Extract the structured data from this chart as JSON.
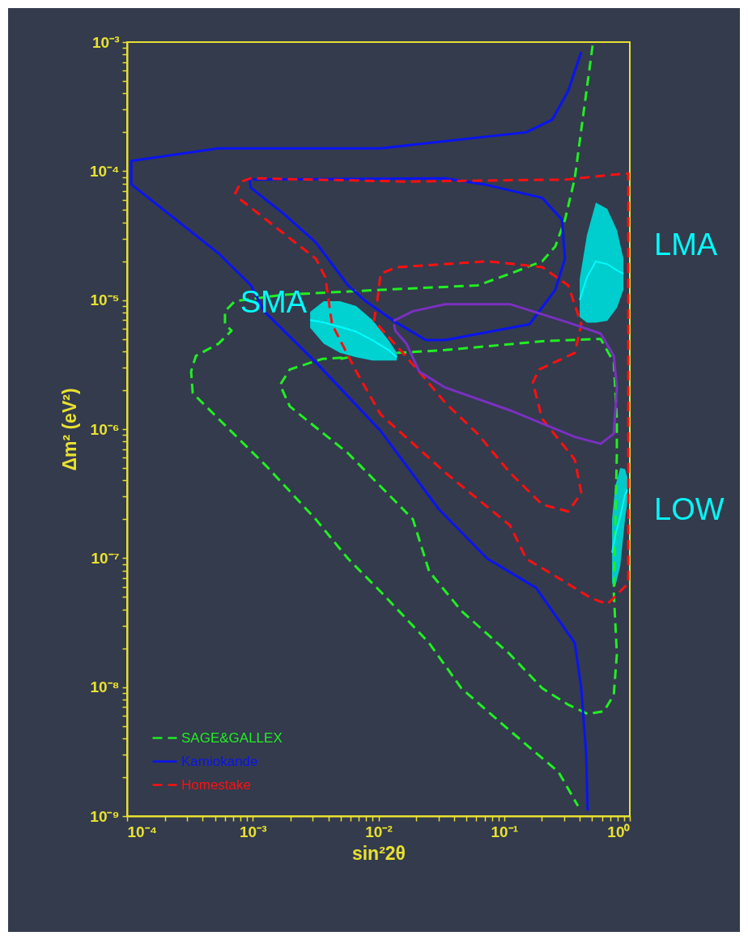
{
  "chart_data": {
    "type": "line",
    "xlabel": "sin²2θ",
    "ylabel": "Δm² (eV²)",
    "log": "xy",
    "legend": "bottom left",
    "xlim": [
      0.0001,
      1
    ],
    "ylim": [
      1e-09,
      0.001
    ],
    "xticks": [
      {
        "value": 0.0001,
        "label": "10⁻⁴"
      },
      {
        "value": 0.0002,
        "label": null
      },
      {
        "value": 0.0003,
        "label": null
      },
      {
        "value": 0.0004,
        "label": null
      },
      {
        "value": 0.0005,
        "label": null
      },
      {
        "value": 0.0006,
        "label": null
      },
      {
        "value": 0.0007,
        "label": null
      },
      {
        "value": 0.0008,
        "label": null
      },
      {
        "value": 0.0009,
        "label": null
      },
      {
        "value": 0.001,
        "label": "10⁻³"
      },
      {
        "value": 0.002,
        "label": null
      },
      {
        "value": 0.003,
        "label": null
      },
      {
        "value": 0.004,
        "label": null
      },
      {
        "value": 0.005,
        "label": null
      },
      {
        "value": 0.006,
        "label": null
      },
      {
        "value": 0.007,
        "label": null
      },
      {
        "value": 0.008,
        "label": null
      },
      {
        "value": 0.009,
        "label": null
      },
      {
        "value": 0.01,
        "label": "10⁻²"
      },
      {
        "value": 0.02,
        "label": null
      },
      {
        "value": 0.03,
        "label": null
      },
      {
        "value": 0.04,
        "label": null
      },
      {
        "value": 0.05,
        "label": null
      },
      {
        "value": 0.06,
        "label": null
      },
      {
        "value": 0.07,
        "label": null
      },
      {
        "value": 0.08,
        "label": null
      },
      {
        "value": 0.09,
        "label": null
      },
      {
        "value": 0.1,
        "label": "10⁻¹"
      },
      {
        "value": 0.2,
        "label": null
      },
      {
        "value": 0.3,
        "label": null
      },
      {
        "value": 0.4,
        "label": null
      },
      {
        "value": 0.5,
        "label": null
      },
      {
        "value": 0.6,
        "label": null
      },
      {
        "value": 0.7,
        "label": null
      },
      {
        "value": 0.8,
        "label": null
      },
      {
        "value": 0.9,
        "label": null
      },
      {
        "value": 1,
        "label": "10⁰"
      }
    ],
    "yticks": [
      {
        "value": 1e-09,
        "label": "10⁻⁹"
      },
      {
        "value": 2e-09,
        "label": null
      },
      {
        "value": 3e-09,
        "label": null
      },
      {
        "value": 4e-09,
        "label": null
      },
      {
        "value": 5e-09,
        "label": null
      },
      {
        "value": 6e-09,
        "label": null
      },
      {
        "value": 7e-09,
        "label": null
      },
      {
        "value": 8e-09,
        "label": null
      },
      {
        "value": 9e-09,
        "label": null
      },
      {
        "value": 1e-08,
        "label": "10⁻⁸"
      },
      {
        "value": 2e-08,
        "label": null
      },
      {
        "value": 3e-08,
        "label": null
      },
      {
        "value": 4e-08,
        "label": null
      },
      {
        "value": 5e-08,
        "label": null
      },
      {
        "value": 6e-08,
        "label": null
      },
      {
        "value": 7e-08,
        "label": null
      },
      {
        "value": 8e-08,
        "label": null
      },
      {
        "value": 9e-08,
        "label": null
      },
      {
        "value": 1e-07,
        "label": "10⁻⁷"
      },
      {
        "value": 2e-07,
        "label": null
      },
      {
        "value": 3e-07,
        "label": null
      },
      {
        "value": 4e-07,
        "label": null
      },
      {
        "value": 5e-07,
        "label": null
      },
      {
        "value": 6e-07,
        "label": null
      },
      {
        "value": 7e-07,
        "label": null
      },
      {
        "value": 8e-07,
        "label": null
      },
      {
        "value": 9e-07,
        "label": null
      },
      {
        "value": 1e-06,
        "label": "10⁻⁶"
      },
      {
        "value": 2e-06,
        "label": null
      },
      {
        "value": 3e-06,
        "label": null
      },
      {
        "value": 4e-06,
        "label": null
      },
      {
        "value": 5e-06,
        "label": null
      },
      {
        "value": 6e-06,
        "label": null
      },
      {
        "value": 7e-06,
        "label": null
      },
      {
        "value": 8e-06,
        "label": null
      },
      {
        "value": 9e-06,
        "label": null
      },
      {
        "value": 1e-05,
        "label": "10⁻⁵"
      },
      {
        "value": 2e-05,
        "label": null
      },
      {
        "value": 3e-05,
        "label": null
      },
      {
        "value": 4e-05,
        "label": null
      },
      {
        "value": 5e-05,
        "label": null
      },
      {
        "value": 6e-05,
        "label": null
      },
      {
        "value": 7e-05,
        "label": null
      },
      {
        "value": 8e-05,
        "label": null
      },
      {
        "value": 9e-05,
        "label": null
      },
      {
        "value": 0.0001,
        "label": "10⁻⁴"
      },
      {
        "value": 0.0002,
        "label": null
      },
      {
        "value": 0.0003,
        "label": null
      },
      {
        "value": 0.0004,
        "label": null
      },
      {
        "value": 0.0005,
        "label": null
      },
      {
        "value": 0.0006,
        "label": null
      },
      {
        "value": 0.0007,
        "label": null
      },
      {
        "value": 0.0008,
        "label": null
      },
      {
        "value": 0.0009,
        "label": null
      },
      {
        "value": 0.001,
        "label": "10⁻³"
      }
    ],
    "series": [
      {
        "name": "SAGE&GALLEX",
        "color": "#22ee22",
        "line_style": "dashed",
        "x": [
          0.506,
          0.411,
          0.365,
          0.305,
          0.255,
          0.201,
          0.111,
          0.0615,
          0.0104,
          0.00175,
          0.000719,
          0.000601,
          0.000601,
          0.000678,
          0.000535,
          0.000353,
          0.000323,
          0.000333,
          0.000535,
          0.0013,
          0.00317,
          0.00573,
          0.0104,
          0.0253,
          0.0457,
          0.111,
          0.271,
          0.387
        ],
        "values": [
          0.00094,
          0.00021,
          8.8e-05,
          4.2e-05,
          2.6e-05,
          2e-05,
          1.6e-05,
          1.3e-05,
          1.2e-05,
          1.1e-05,
          9.8e-06,
          8.2e-06,
          6.5e-06,
          5.8e-06,
          4.6e-06,
          3.7e-06,
          2.8e-06,
          1.9e-06,
          1.2e-06,
          5.1e-07,
          2e-07,
          9.9e-08,
          5.5e-08,
          2.2e-08,
          9.8e-09,
          4.6e-09,
          2.2e-09,
          1.2e-09
        ]
      },
      {
        "color": "#22ee22",
        "line_style": "dashed",
        "x": [
          0.014,
          0.034,
          0.201,
          0.586,
          0.745,
          0.789,
          0.789,
          0.745,
          0.789,
          0.745,
          0.622,
          0.462,
          0.324,
          0.201,
          0.111,
          0.0457,
          0.0253,
          0.0188,
          0.00573,
          0.00197,
          0.00165,
          0.00197,
          0.00357,
          0.00573,
          0.005
        ],
        "values": [
          3.9e-06,
          4.1e-06,
          4.8e-06,
          5e-06,
          3.3e-06,
          1.2e-06,
          6.5e-07,
          5.5e-08,
          1.8e-08,
          8.7e-09,
          6.5e-09,
          6.2e-09,
          7.3e-09,
          9.8e-09,
          1.8e-08,
          3.9e-08,
          7.9e-08,
          2e-07,
          6.5e-07,
          1.5e-06,
          2.2e-06,
          2.9e-06,
          3.5e-06,
          3.6e-06,
          3.5e-06
        ]
      },
      {
        "name": "Kamiokande",
        "color": "#0a14f0",
        "line_style": "solid",
        "x": [
          0.411,
          0.324,
          0.241,
          0.15,
          0.0104,
          0.000535,
          0.000108,
          0.000108,
          0.000535,
          0.000968,
          0.00123,
          0.00317,
          0.0104,
          0.0302,
          0.0735,
          0.179,
          0.365,
          0.411,
          0.449,
          0.462
        ],
        "values": [
          0.00084,
          0.00042,
          0.00025,
          0.0002,
          0.00015,
          0.00015,
          0.00012,
          7.9e-05,
          2.3e-05,
          1.3e-05,
          8.2e-06,
          3.3e-06,
          9.7e-07,
          2.4e-07,
          9.9e-08,
          5.9e-08,
          2.2e-08,
          9.8e-09,
          3.1e-09,
          1.1e-09
        ]
      },
      {
        "color": "#0a14f0",
        "line_style": "solid",
        "x": [
          0.001,
          0.034,
          0.0693,
          0.201,
          0.288,
          0.305,
          0.255,
          0.159,
          0.034,
          0.0238,
          0.0132,
          0.00771,
          0.00573,
          0.00317,
          0.00175,
          0.000968,
          0.00094
        ],
        "values": [
          8.6e-05,
          8.8e-05,
          7.9e-05,
          6.2e-05,
          4.2e-05,
          2.1e-05,
          1.2e-05,
          6.5e-06,
          4.9e-06,
          4.9e-06,
          6.9e-06,
          1e-05,
          1.3e-05,
          2.8e-05,
          4.7e-05,
          7.4e-05,
          8.8e-05
        ]
      },
      {
        "name": "Homestake",
        "color": "#ff1010",
        "line_style": "dashed",
        "x": [
          0.000719,
          0.000809,
          0.000968,
          0.0162,
          0.315,
          0.661,
          0.973,
          0.973,
          0.973,
          0.973,
          0.789,
          0.661,
          0.491,
          0.271,
          0.15,
          0.111,
          0.034,
          0.0104,
          0.00665,
          0.00427,
          0.00378,
          0.00317,
          0.00175,
          0.000968,
          0.00075
        ],
        "values": [
          6.6e-05,
          8.3e-05,
          8.8e-05,
          8.3e-05,
          8.6e-05,
          9.3e-05,
          9.6e-05,
          2.8e-05,
          1.5e-06,
          6.4e-08,
          5.2e-08,
          4.4e-08,
          4.9e-08,
          7e-08,
          9.9e-08,
          1.8e-07,
          4.6e-07,
          1.3e-06,
          2.8e-06,
          6.5e-06,
          1.5e-05,
          2.1e-05,
          3.3e-05,
          5.2e-05,
          6.3e-05
        ]
      },
      {
        "color": "#ff1010",
        "line_style": "dashed",
        "x": [
          0.00978,
          0.0104,
          0.014,
          0.0735,
          0.201,
          0.324,
          0.411,
          0.365,
          0.19,
          0.169,
          0.201,
          0.365,
          0.411,
          0.324,
          0.201,
          0.111,
          0.0615,
          0.034,
          0.0224,
          0.014,
          0.00922,
          0.0095
        ],
        "values": [
          9.8e-06,
          1.6e-05,
          1.8e-05,
          2e-05,
          1.8e-05,
          1.3e-05,
          6.5e-06,
          3.9e-06,
          2.9e-06,
          2.3e-06,
          1.2e-06,
          5.8e-07,
          3.2e-07,
          2.3e-07,
          2.6e-07,
          4.6e-07,
          9.2e-07,
          1.6e-06,
          2.6e-06,
          4.4e-06,
          6.9e-06,
          8.5e-06
        ]
      },
      {
        "color": "#7b30c0",
        "line_style": "solid",
        "x": [
          0.0132,
          0.0188,
          0.034,
          0.111,
          0.324,
          0.586,
          0.745,
          0.789,
          0.745,
          0.586,
          0.365,
          0.111,
          0.034,
          0.0211,
          0.0167,
          0.0136,
          0.0133
        ],
        "values": [
          6.9e-06,
          8.2e-06,
          9.3e-06,
          9.3e-06,
          6.7e-06,
          5.5e-06,
          3.7e-06,
          2.1e-06,
          9.2e-07,
          7.7e-07,
          8.7e-07,
          1.4e-06,
          2.1e-06,
          2.8e-06,
          4.6e-06,
          5.8e-06,
          6.5e-06
        ]
      },
      {
        "name": "SMA",
        "color": "#00ffff",
        "x": [
          0.00286,
          0.00367,
          0.00494,
          0.00665,
          0.00895,
          0.012,
          0.014
        ],
        "values": [
          7e-06,
          6.7e-06,
          6.2e-06,
          5.7e-06,
          4.9e-06,
          4.1e-06,
          3.6e-06
        ],
        "upper": [
          8.1e-06,
          9.8e-06,
          9.8e-06,
          9e-06,
          7e-06,
          4.9e-06,
          3.9e-06
        ],
        "lower": [
          6.1e-06,
          4.6e-06,
          3.9e-06,
          3.6e-06,
          3.4e-06,
          3.4e-06,
          3.4e-06
        ]
      },
      {
        "name": "LMA",
        "color": "#00fafa",
        "x": [
          0.399,
          0.456,
          0.537,
          0.661,
          0.789,
          0.889
        ],
        "values": [
          1e-05,
          1.5e-05,
          2e-05,
          1.9e-05,
          1.7e-05,
          1.6e-05
        ],
        "upper": [
          1.45e-05,
          3.2e-05,
          5.7e-05,
          5.1e-05,
          3.5e-05,
          2.1e-05
        ],
        "lower": [
          7.4e-06,
          6.7e-06,
          6.7e-06,
          6.9e-06,
          8.7e-06,
          1.2e-05
        ]
      },
      {
        "name": "LOW",
        "color": "#05f5f5",
        "x": [
          0.722,
          0.766,
          0.838,
          0.916,
          0.957
        ],
        "values": [
          1.1e-07,
          1.5e-07,
          2.1e-07,
          3.1e-07,
          3.4e-07
        ],
        "upper": [
          2e-07,
          3.6e-07,
          5e-07,
          4.9e-07,
          4.2e-07
        ],
        "lower": [
          6.4e-08,
          6e-08,
          8.6e-08,
          2e-07,
          2.7e-07
        ]
      }
    ]
  }
}
